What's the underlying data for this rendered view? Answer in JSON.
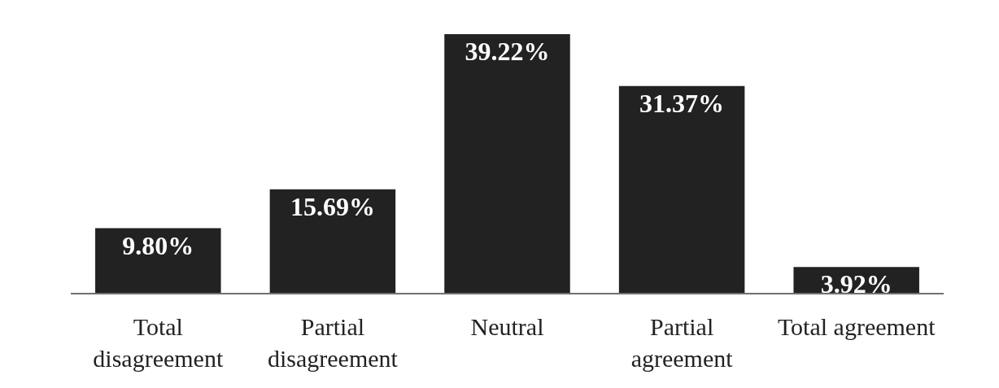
{
  "chart_data": {
    "type": "bar",
    "categories": [
      "Total disagreement",
      "Partial disagreement",
      "Neutral",
      "Partial agreement",
      "Total agreement"
    ],
    "values": [
      9.8,
      15.69,
      39.22,
      31.37,
      3.92
    ],
    "color": "#222222",
    "value_labels": [
      "9.80%",
      "15.69%",
      "39.22%",
      "31.37%",
      "3.92%"
    ]
  }
}
